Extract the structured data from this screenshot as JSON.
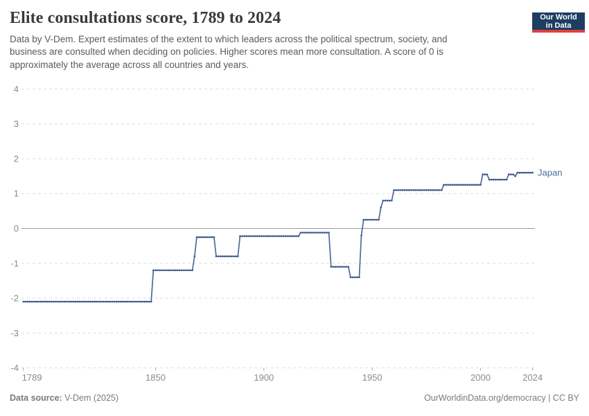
{
  "header": {
    "title": "Elite consultations score, 1789 to 2024",
    "subtitle_lines": [
      "Data by V-Dem. Expert estimates of the extent to which leaders across the political spectrum, society, and",
      "business are consulted when deciding on policies. Higher scores mean more consultation. A score of 0 is",
      "approximately the average across all countries and years."
    ],
    "logo_line1": "Our World",
    "logo_line2": "in Data",
    "logo_bg": "#1d3d63",
    "logo_accent": "#e0403f"
  },
  "footer": {
    "source_label": "Data source:",
    "source_value": "V-Dem (2025)",
    "attribution": "OurWorldinData.org/democracy | CC BY"
  },
  "chart_data": {
    "type": "line",
    "title": "Elite consultations score, 1789 to 2024",
    "entity": "Japan",
    "xlabel": "",
    "ylabel": "",
    "x_range": [
      1789,
      2024
    ],
    "ylim": [
      -4,
      4
    ],
    "x_ticks": [
      1789,
      1850,
      1900,
      1950,
      2000,
      2024
    ],
    "y_ticks": [
      -4,
      -3,
      -2,
      -1,
      0,
      1,
      2,
      3,
      4
    ],
    "grid": true,
    "legend_position": "right-of-line-end",
    "line_color": "#4c6a9c",
    "marker_color": "#3b5786",
    "series": [
      {
        "name": "Japan",
        "sampling": "annual; value holds from each breakpoint year until the next",
        "step_points": [
          {
            "year": 1789,
            "value": -2.1
          },
          {
            "year": 1849,
            "value": -1.2
          },
          {
            "year": 1868,
            "value": -0.8
          },
          {
            "year": 1869,
            "value": -0.25
          },
          {
            "year": 1878,
            "value": -0.8
          },
          {
            "year": 1889,
            "value": -0.22
          },
          {
            "year": 1917,
            "value": -0.12
          },
          {
            "year": 1931,
            "value": -1.1
          },
          {
            "year": 1940,
            "value": -1.4
          },
          {
            "year": 1945,
            "value": -0.2
          },
          {
            "year": 1946,
            "value": 0.25
          },
          {
            "year": 1954,
            "value": 0.6
          },
          {
            "year": 1955,
            "value": 0.8
          },
          {
            "year": 1960,
            "value": 1.1
          },
          {
            "year": 1983,
            "value": 1.25
          },
          {
            "year": 2001,
            "value": 1.55
          },
          {
            "year": 2004,
            "value": 1.4
          },
          {
            "year": 2013,
            "value": 1.55
          },
          {
            "year": 2016,
            "value": 1.5
          },
          {
            "year": 2017,
            "value": 1.6
          }
        ]
      }
    ]
  }
}
